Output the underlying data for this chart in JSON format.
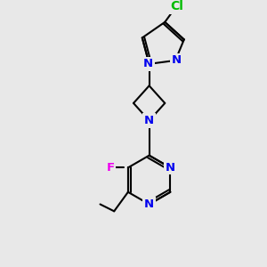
{
  "bg_color": "#e8e8e8",
  "bond_color": "#000000",
  "bond_width": 1.5,
  "atom_colors": {
    "N": "#0000ee",
    "F": "#ee00ee",
    "Cl": "#00bb00",
    "C": "#000000"
  },
  "font_size": 9.5
}
